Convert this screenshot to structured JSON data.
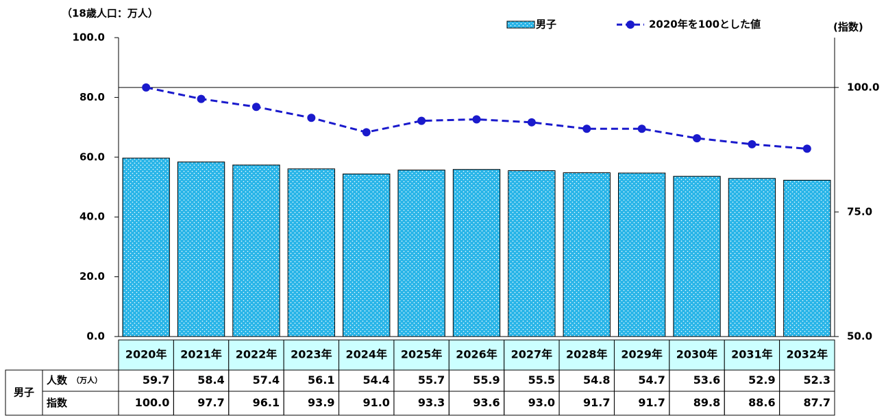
{
  "chart_data": {
    "type": "combo",
    "y_axis_title": "（18歳人口：万人）",
    "y2_axis_title": "(指数)",
    "categories": [
      "2020年",
      "2021年",
      "2022年",
      "2023年",
      "2024年",
      "2025年",
      "2026年",
      "2027年",
      "2028年",
      "2029年",
      "2030年",
      "2031年",
      "2032年"
    ],
    "series": [
      {
        "name": "男子",
        "type": "bar",
        "color": "#29b5e8",
        "values": [
          59.7,
          58.4,
          57.4,
          56.1,
          54.4,
          55.7,
          55.9,
          55.5,
          54.8,
          54.7,
          53.6,
          52.9,
          52.3
        ]
      },
      {
        "name": "2020年を100とした値",
        "type": "line",
        "axis": "y2",
        "color": "#1a1acc",
        "values": [
          100,
          97.7,
          96.1,
          93.9,
          91,
          93.3,
          93.6,
          93,
          91.7,
          91.7,
          89.8,
          88.6,
          87.7
        ],
        "value_labels": [
          "100.0",
          "97.7",
          "96.1",
          "93.9",
          "91.0",
          "93.3",
          "93.6",
          "93.0",
          "91.7",
          "91.7",
          "89.8",
          "88.6",
          "87.7"
        ]
      }
    ],
    "ylim": [
      0,
      100
    ],
    "yticks": [
      {
        "value": 0,
        "label": "0.0"
      },
      {
        "value": 20,
        "label": "20.0"
      },
      {
        "value": 40,
        "label": "40.0"
      },
      {
        "value": 60,
        "label": "60.0"
      },
      {
        "value": 80,
        "label": "80.0"
      },
      {
        "value": 100,
        "label": "100.0"
      }
    ],
    "y2lim": [
      50,
      110
    ],
    "y2ticks": [
      {
        "value": 50,
        "label": "50.0"
      },
      {
        "value": 75,
        "label": "75.0"
      },
      {
        "value": 100,
        "label": "100.0"
      }
    ],
    "reference_line": {
      "axis": "y2",
      "value": 100
    }
  },
  "table": {
    "group": "男子",
    "rows": [
      {
        "label": "人数",
        "unit": "（万人）"
      },
      {
        "label": "指数"
      }
    ]
  }
}
